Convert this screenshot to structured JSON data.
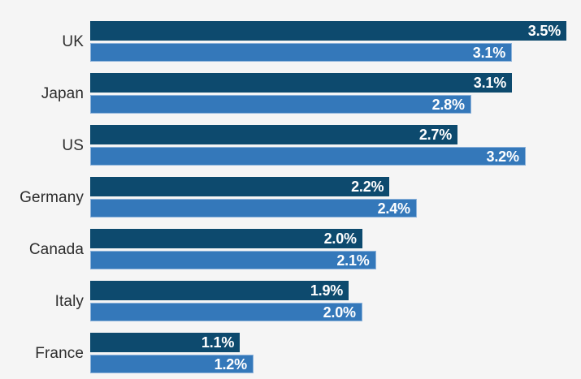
{
  "chart_data": {
    "type": "bar",
    "orientation": "horizontal",
    "title": "",
    "xlabel": "",
    "ylabel": "",
    "grid": false,
    "legend": null,
    "xlim": [
      0,
      3.5
    ],
    "categories": [
      "UK",
      "Japan",
      "US",
      "Germany",
      "Canada",
      "Italy",
      "France"
    ],
    "series": [
      {
        "name": "dark-blue-series",
        "color": "#0d4a6e",
        "values": [
          3.5,
          3.1,
          2.7,
          2.2,
          2.0,
          1.9,
          1.1
        ],
        "labels": [
          "3.5%",
          "3.1%",
          "2.7%",
          "2.2%",
          "2.0%",
          "1.9%",
          "1.1%"
        ]
      },
      {
        "name": "light-blue-series",
        "color": "#3478ba",
        "border_color": "#8db3da",
        "values": [
          3.1,
          2.8,
          3.2,
          2.4,
          2.1,
          2.0,
          1.2
        ],
        "labels": [
          "3.1%",
          "2.8%",
          "3.2%",
          "2.4%",
          "2.1%",
          "2.0%",
          "1.2%"
        ]
      }
    ]
  },
  "colors": {
    "background": "#f5f5f5",
    "category_label": "#2d2d2d",
    "value_label": "#ffffff"
  }
}
